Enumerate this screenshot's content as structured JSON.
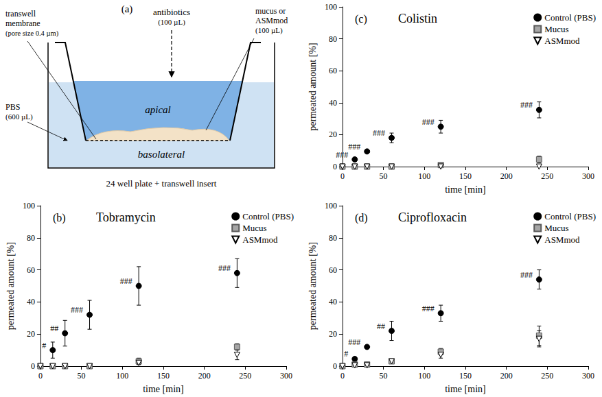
{
  "diagram": {
    "panel": "(a)",
    "antibiotics": {
      "label": "antibiotics",
      "volume": "(100 µL)"
    },
    "membrane": {
      "lines": [
        "transwell",
        "membrane"
      ],
      "pore": "(pore size 0.4 µm)"
    },
    "sample": {
      "lines": [
        "mucus or",
        "ASMmod",
        "(100 µL)"
      ]
    },
    "compartments": {
      "apical": "apical",
      "basolateral": "basolateral"
    },
    "medium": {
      "label": "PBS",
      "volume": "(600 µL)"
    },
    "caption": "24 well plate + transwell insert"
  },
  "chart_data": [
    {
      "type": "scatter",
      "panel": "(b)",
      "title": "Tobramycin",
      "x_label": "time [min]",
      "y_label": "permeated amount [%]",
      "x": [
        0,
        15,
        30,
        60,
        120,
        240
      ],
      "xlim": [
        0,
        300
      ],
      "xticks": [
        0,
        50,
        100,
        150,
        200,
        250,
        300
      ],
      "ylim": [
        0,
        100
      ],
      "yticks": [
        0,
        20,
        40,
        60,
        80,
        100
      ],
      "grid": false,
      "legend": "top-right",
      "series": [
        {
          "name": "Control (PBS)",
          "color": "#000000",
          "marker": "circle",
          "values": [
            0,
            10,
            20.5,
            32,
            50,
            58
          ],
          "errors": [
            0,
            5,
            8,
            9,
            12,
            9
          ],
          "significance": [
            null,
            "#",
            "##",
            "###",
            "###",
            "###"
          ]
        },
        {
          "name": "Mucus",
          "color": "#a6a6a6",
          "marker": "square",
          "values": [
            0,
            0,
            0,
            0,
            3,
            12
          ],
          "errors": [
            0,
            0,
            0,
            0,
            2,
            2
          ]
        },
        {
          "name": "ASMmod",
          "color": "#ffffff",
          "marker": "triangle-down",
          "values": [
            0,
            0,
            0,
            0,
            2,
            7
          ],
          "errors": [
            0,
            0,
            0,
            0,
            1,
            3
          ]
        }
      ]
    },
    {
      "type": "scatter",
      "panel": "(c)",
      "title": "Colistin",
      "x_label": "time [min]",
      "y_label": "permeated amount [%]",
      "x": [
        0,
        15,
        30,
        60,
        120,
        240
      ],
      "xlim": [
        0,
        300
      ],
      "xticks": [
        0,
        50,
        100,
        150,
        200,
        250,
        300
      ],
      "ylim": [
        0,
        100
      ],
      "yticks": [
        0,
        20,
        40,
        60,
        80,
        100
      ],
      "grid": false,
      "legend": "top-right",
      "series": [
        {
          "name": "Control (PBS)",
          "color": "#000000",
          "marker": "circle",
          "values": [
            0,
            4.5,
            9.5,
            18,
            25,
            35.5
          ],
          "errors": [
            0,
            1,
            1,
            3,
            4,
            5
          ],
          "significance": [
            null,
            "###",
            "###",
            "###",
            "###",
            "###"
          ]
        },
        {
          "name": "Mucus",
          "color": "#a6a6a6",
          "marker": "square",
          "values": [
            0,
            0,
            0,
            0,
            1,
            4.5
          ],
          "errors": [
            0,
            0,
            0,
            0,
            0,
            2
          ]
        },
        {
          "name": "ASMmod",
          "color": "#ffffff",
          "marker": "triangle-down",
          "values": [
            0,
            0,
            0,
            0,
            0,
            0
          ],
          "errors": [
            0,
            0,
            0,
            0,
            0,
            0
          ]
        }
      ]
    },
    {
      "type": "scatter",
      "panel": "(d)",
      "title": "Ciprofloxacin",
      "x_label": "time [min]",
      "y_label": "permeated amount [%]",
      "x": [
        0,
        15,
        30,
        60,
        120,
        240
      ],
      "xlim": [
        0,
        300
      ],
      "xticks": [
        0,
        50,
        100,
        150,
        200,
        250,
        300
      ],
      "ylim": [
        0,
        100
      ],
      "yticks": [
        0,
        20,
        40,
        60,
        80,
        100
      ],
      "grid": false,
      "legend": "top-right",
      "series": [
        {
          "name": "Control (PBS)",
          "color": "#000000",
          "marker": "circle",
          "values": [
            0,
            4.5,
            12,
            22,
            33,
            54
          ],
          "errors": [
            0,
            1,
            1,
            6,
            5,
            6
          ],
          "significance": [
            null,
            "#",
            "###",
            "##",
            "###",
            "###"
          ]
        },
        {
          "name": "Mucus",
          "color": "#a6a6a6",
          "marker": "square",
          "values": [
            0,
            1,
            1,
            3,
            9,
            19
          ],
          "errors": [
            0,
            0,
            0,
            1,
            2,
            6
          ]
        },
        {
          "name": "ASMmod",
          "color": "#ffffff",
          "marker": "triangle-down",
          "values": [
            0,
            0.5,
            0.5,
            3,
            7,
            17
          ],
          "errors": [
            0,
            0,
            0,
            1,
            2,
            5
          ]
        }
      ]
    }
  ]
}
